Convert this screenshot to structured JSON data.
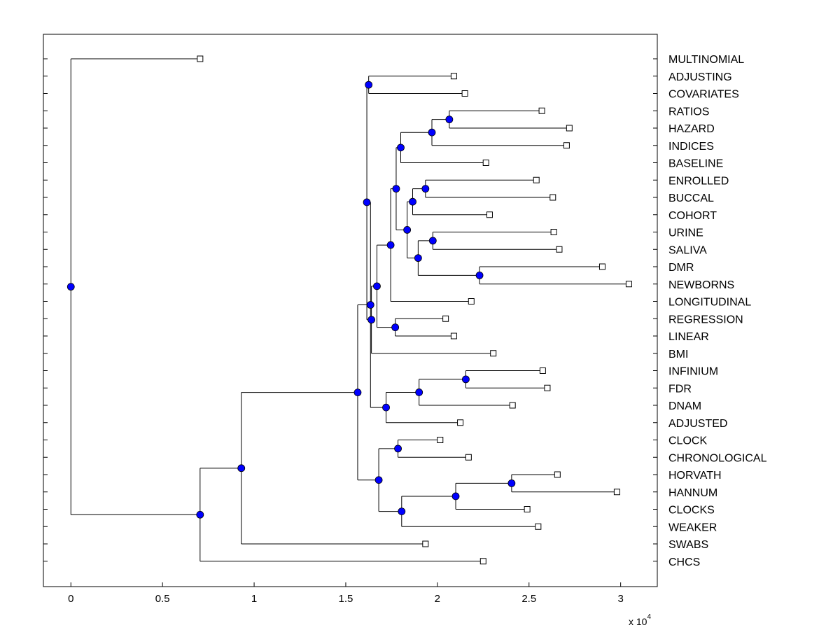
{
  "chart_data": {
    "type": "dendrogram",
    "orientation": "horizontal",
    "colors": {
      "node": "#0000ff",
      "leaf": "#ffffff",
      "line": "#000000"
    },
    "x_axis": {
      "ticks": [
        0,
        5000,
        10000,
        15000,
        20000,
        25000,
        30000
      ],
      "tick_labels": [
        "0",
        "0.5",
        "1",
        "1.5",
        "2",
        "2.5",
        "3"
      ],
      "xlim": [
        -1500,
        32000
      ],
      "multiplier_base": "x 10",
      "multiplier_exp": "4"
    },
    "leaves": [
      {
        "label": "MULTINOMIAL",
        "x": 7050
      },
      {
        "label": "ADJUSTING",
        "x": 20900
      },
      {
        "label": "COVARIATES",
        "x": 21500
      },
      {
        "label": "RATIOS",
        "x": 25700
      },
      {
        "label": "HAZARD",
        "x": 27200
      },
      {
        "label": "INDICES",
        "x": 27050
      },
      {
        "label": "BASELINE",
        "x": 22650
      },
      {
        "label": "ENROLLED",
        "x": 25400
      },
      {
        "label": "BUCCAL",
        "x": 26300
      },
      {
        "label": "COHORT",
        "x": 22850
      },
      {
        "label": "URINE",
        "x": 26350
      },
      {
        "label": "SALIVA",
        "x": 26650
      },
      {
        "label": "DMR",
        "x": 29000
      },
      {
        "label": "NEWBORNS",
        "x": 30450
      },
      {
        "label": "LONGITUDINAL",
        "x": 21850
      },
      {
        "label": "REGRESSION",
        "x": 20450
      },
      {
        "label": "LINEAR",
        "x": 20900
      },
      {
        "label": "BMI",
        "x": 23050
      },
      {
        "label": "INFINIUM",
        "x": 25750
      },
      {
        "label": "FDR",
        "x": 26000
      },
      {
        "label": "DNAM",
        "x": 24100
      },
      {
        "label": "ADJUSTED",
        "x": 21250
      },
      {
        "label": "CLOCK",
        "x": 20150
      },
      {
        "label": "CHRONOLOGICAL",
        "x": 21700
      },
      {
        "label": "HORVATH",
        "x": 26550
      },
      {
        "label": "HANNUM",
        "x": 29800
      },
      {
        "label": "CLOCKS",
        "x": 24900
      },
      {
        "label": "WEAKER",
        "x": 25500
      },
      {
        "label": "SWABS",
        "x": 19350
      },
      {
        "label": "CHCS",
        "x": 22500
      }
    ],
    "nodes": [
      {
        "id": "n_ratios_hazard",
        "x": 20650,
        "children": [
          "RATIOS",
          "HAZARD"
        ]
      },
      {
        "id": "n_rh_indices",
        "x": 19700,
        "children": [
          "n_ratios_hazard",
          "INDICES"
        ]
      },
      {
        "id": "n_rhi_baseline",
        "x": 18000,
        "children": [
          "n_rh_indices",
          "BASELINE"
        ]
      },
      {
        "id": "n_enrolled_buccal",
        "x": 19350,
        "children": [
          "ENROLLED",
          "BUCCAL"
        ]
      },
      {
        "id": "n_eb_cohort",
        "x": 18650,
        "children": [
          "n_enrolled_buccal",
          "COHORT"
        ]
      },
      {
        "id": "n_urine_saliva",
        "x": 19750,
        "children": [
          "URINE",
          "SALIVA"
        ]
      },
      {
        "id": "n_dmr_newborns",
        "x": 22300,
        "children": [
          "DMR",
          "NEWBORNS"
        ]
      },
      {
        "id": "n_us_dn",
        "x": 18950,
        "children": [
          "n_urine_saliva",
          "n_dmr_newborns"
        ]
      },
      {
        "id": "n_ebc_usdn",
        "x": 18350,
        "children": [
          "n_eb_cohort",
          "n_us_dn"
        ]
      },
      {
        "id": "n_rhib_ebcus",
        "x": 17750,
        "children": [
          "n_rhi_baseline",
          "n_ebc_usdn"
        ]
      },
      {
        "id": "n_big_longitudinal",
        "x": 17450,
        "children": [
          "n_rhib_ebcus",
          "LONGITUDINAL"
        ]
      },
      {
        "id": "n_regression_linear",
        "x": 17700,
        "children": [
          "REGRESSION",
          "LINEAR"
        ]
      },
      {
        "id": "n_bl_rl",
        "x": 16700,
        "children": [
          "n_big_longitudinal",
          "n_regression_linear"
        ]
      },
      {
        "id": "n_blrl_bmi",
        "x": 16400,
        "children": [
          "n_bl_rl",
          "BMI"
        ]
      },
      {
        "id": "n_adjusting_covariates",
        "x": 16250,
        "children": [
          "ADJUSTING",
          "COVARIATES"
        ]
      },
      {
        "id": "n_ac_blrlb",
        "x": 16150,
        "children": [
          "n_adjusting_covariates",
          "n_blrl_bmi"
        ]
      },
      {
        "id": "n_infinium_fdr",
        "x": 21550,
        "children": [
          "INFINIUM",
          "FDR"
        ]
      },
      {
        "id": "n_if_dnam",
        "x": 19000,
        "children": [
          "n_infinium_fdr",
          "DNAM"
        ]
      },
      {
        "id": "n_ifd_adjusted",
        "x": 17200,
        "children": [
          "n_if_dnam",
          "ADJUSTED"
        ]
      },
      {
        "id": "n_upper_ifda",
        "x": 16350,
        "children": [
          "n_ac_blrlb",
          "n_ifd_adjusted"
        ]
      },
      {
        "id": "n_clock_chrono",
        "x": 17850,
        "children": [
          "CLOCK",
          "CHRONOLOGICAL"
        ]
      },
      {
        "id": "n_horvath_hannum",
        "x": 24050,
        "children": [
          "HORVATH",
          "HANNUM"
        ]
      },
      {
        "id": "n_hh_clocks",
        "x": 21000,
        "children": [
          "n_horvath_hannum",
          "CLOCKS"
        ]
      },
      {
        "id": "n_hhc_weaker",
        "x": 18050,
        "children": [
          "n_hh_clocks",
          "WEAKER"
        ]
      },
      {
        "id": "n_cc_hhcw",
        "x": 16800,
        "children": [
          "n_clock_chrono",
          "n_hhc_weaker"
        ]
      },
      {
        "id": "n_upper_lower",
        "x": 15650,
        "children": [
          "n_upper_ifda",
          "n_cc_hhcw"
        ]
      },
      {
        "id": "n_ul_swabs",
        "x": 9300,
        "children": [
          "n_upper_lower",
          "SWABS"
        ]
      },
      {
        "id": "n_uls_chcs",
        "x": 7050,
        "children": [
          "n_ul_swabs",
          "CHCS"
        ]
      },
      {
        "id": "n_root",
        "x": 0,
        "children": [
          "MULTINOMIAL",
          "n_uls_chcs"
        ]
      }
    ]
  }
}
